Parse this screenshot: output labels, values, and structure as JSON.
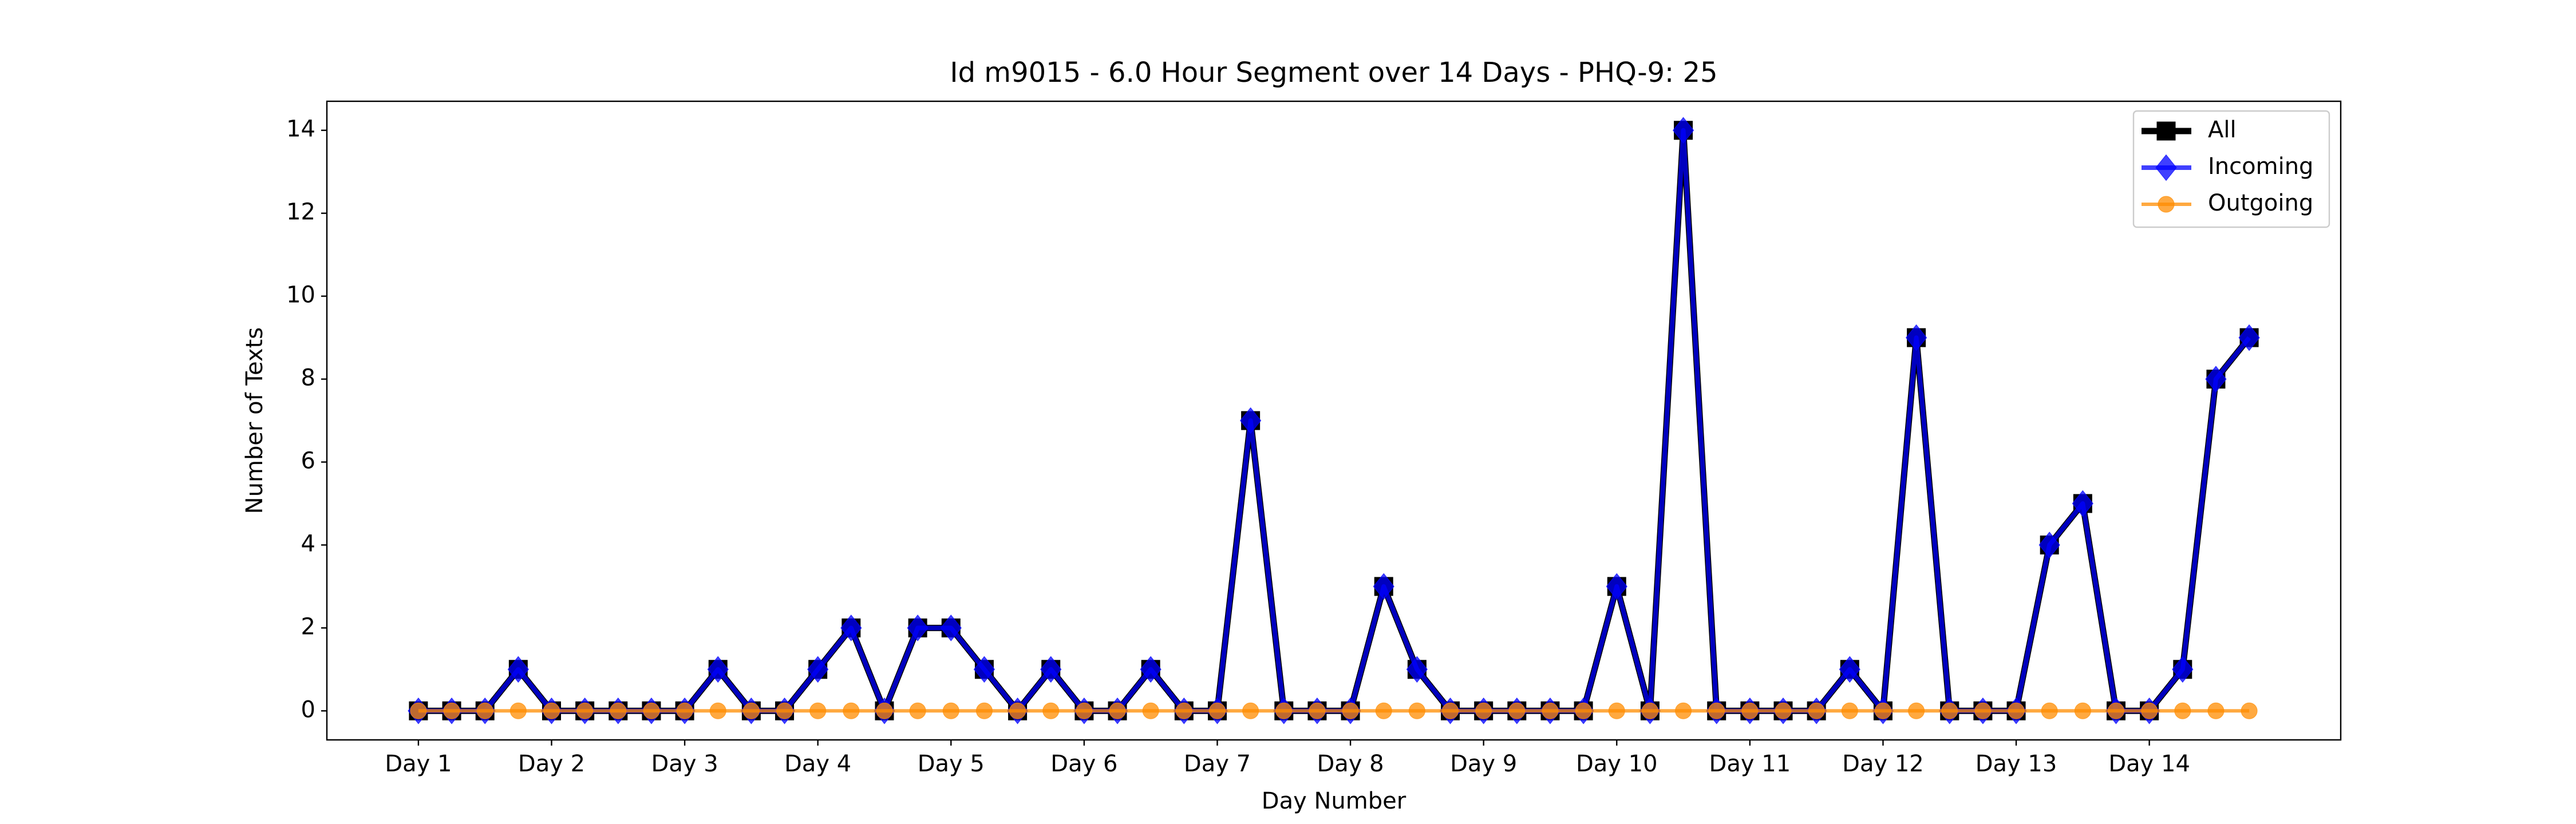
{
  "chart_data": {
    "type": "line",
    "title": "Id m9015 - 6.0 Hour Segment over 14 Days - PHQ-9: 25",
    "xlabel": "Day Number",
    "ylabel": "Number of Texts",
    "x": [
      0,
      1,
      2,
      3,
      4,
      5,
      6,
      7,
      8,
      9,
      10,
      11,
      12,
      13,
      14,
      15,
      16,
      17,
      18,
      19,
      20,
      21,
      22,
      23,
      24,
      25,
      26,
      27,
      28,
      29,
      30,
      31,
      32,
      33,
      34,
      35,
      36,
      37,
      38,
      39,
      40,
      41,
      42,
      43,
      44,
      45,
      46,
      47,
      48,
      49,
      50,
      51,
      52,
      53,
      54,
      55
    ],
    "series": [
      {
        "name": "All",
        "color": "#000000",
        "marker": "square",
        "values": [
          0,
          0,
          0,
          1,
          0,
          0,
          0,
          0,
          0,
          1,
          0,
          0,
          1,
          2,
          0,
          2,
          2,
          1,
          0,
          1,
          0,
          0,
          1,
          0,
          0,
          7,
          0,
          0,
          0,
          3,
          1,
          0,
          0,
          0,
          0,
          0,
          3,
          0,
          14,
          0,
          0,
          0,
          0,
          1,
          0,
          9,
          0,
          0,
          0,
          4,
          5,
          0,
          0,
          1,
          8,
          9
        ]
      },
      {
        "name": "Incoming",
        "color": "#0000ff",
        "marker": "diamond",
        "values": [
          0,
          0,
          0,
          1,
          0,
          0,
          0,
          0,
          0,
          1,
          0,
          0,
          1,
          2,
          0,
          2,
          2,
          1,
          0,
          1,
          0,
          0,
          1,
          0,
          0,
          7,
          0,
          0,
          0,
          3,
          1,
          0,
          0,
          0,
          0,
          0,
          3,
          0,
          14,
          0,
          0,
          0,
          0,
          1,
          0,
          9,
          0,
          0,
          0,
          4,
          5,
          0,
          0,
          1,
          8,
          9
        ]
      },
      {
        "name": "Outgoing",
        "color": "#ff8c00",
        "marker": "circle",
        "values": [
          0,
          0,
          0,
          0,
          0,
          0,
          0,
          0,
          0,
          0,
          0,
          0,
          0,
          0,
          0,
          0,
          0,
          0,
          0,
          0,
          0,
          0,
          0,
          0,
          0,
          0,
          0,
          0,
          0,
          0,
          0,
          0,
          0,
          0,
          0,
          0,
          0,
          0,
          0,
          0,
          0,
          0,
          0,
          0,
          0,
          0,
          0,
          0,
          0,
          0,
          0,
          0,
          0,
          0,
          0,
          0
        ]
      }
    ],
    "xlim": [
      -2.75,
      57.75
    ],
    "ylim": [
      -0.7,
      14.7
    ],
    "xticks": [
      {
        "value": 0,
        "label": "Day 1"
      },
      {
        "value": 4,
        "label": "Day 2"
      },
      {
        "value": 8,
        "label": "Day 3"
      },
      {
        "value": 12,
        "label": "Day 4"
      },
      {
        "value": 16,
        "label": "Day 5"
      },
      {
        "value": 20,
        "label": "Day 6"
      },
      {
        "value": 24,
        "label": "Day 7"
      },
      {
        "value": 28,
        "label": "Day 8"
      },
      {
        "value": 32,
        "label": "Day 9"
      },
      {
        "value": 36,
        "label": "Day 10"
      },
      {
        "value": 40,
        "label": "Day 11"
      },
      {
        "value": 44,
        "label": "Day 12"
      },
      {
        "value": 48,
        "label": "Day 13"
      },
      {
        "value": 52,
        "label": "Day 14"
      }
    ],
    "yticks": [
      0,
      2,
      4,
      6,
      8,
      10,
      12,
      14
    ],
    "legend": "upper right"
  }
}
